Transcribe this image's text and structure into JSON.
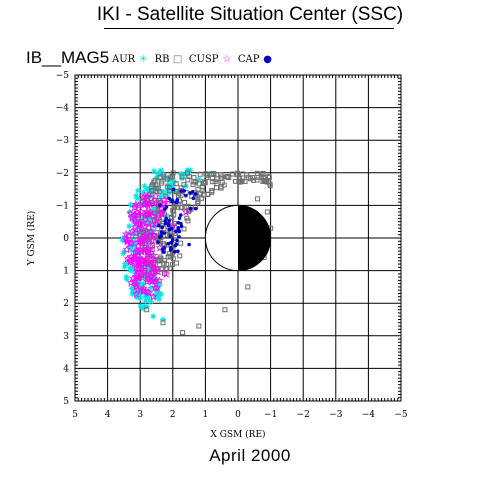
{
  "header": {
    "title": "IKI - Satellite Situation Center (SSC)",
    "satellite": "IB__MAG5",
    "date": "April    2000"
  },
  "chart_data": {
    "type": "scatter",
    "xlabel": "X GSM (RE)",
    "ylabel": "Y GSM (RE)",
    "xlim": [
      5,
      -5
    ],
    "ylim": [
      -5,
      5
    ],
    "xticks": [
      "5",
      "4",
      "3",
      "2",
      "1",
      "0",
      "−1",
      "−2",
      "−3",
      "−4",
      "−5"
    ],
    "yticks": [
      "−5",
      "−4",
      "−3",
      "−2",
      "−1",
      "0",
      "1",
      "2",
      "3",
      "4",
      "5"
    ],
    "grid": true,
    "earth": {
      "center": [
        0,
        0
      ],
      "radius": 1,
      "dayside_fill": "#ffffff",
      "nightside_fill": "#000000"
    },
    "legend_position": "top",
    "series": [
      {
        "name": "AUR",
        "color": "#00e5e5",
        "marker": "asterisk",
        "region": {
          "x": [
            0.6,
            3.6
          ],
          "y": [
            -2.1,
            2.6
          ]
        },
        "points": [
          [
            3.3,
            0.9
          ],
          [
            3.2,
            1.3
          ],
          [
            3.0,
            1.7
          ],
          [
            2.8,
            2.1
          ],
          [
            2.6,
            2.4
          ],
          [
            2.3,
            2.5
          ],
          [
            1.9,
            -1.4
          ],
          [
            1.6,
            -1.6
          ],
          [
            1.2,
            -1.8
          ],
          [
            0.9,
            -1.9
          ],
          [
            2.7,
            -0.2
          ],
          [
            2.2,
            -0.7
          ]
        ]
      },
      {
        "name": "RB",
        "color": "#6e6e6e",
        "marker": "square",
        "region": {
          "x": [
            -1.0,
            3.0
          ],
          "y": [
            -2.0,
            3.0
          ]
        },
        "points": [
          [
            -0.6,
            -1.2
          ],
          [
            -0.9,
            -0.8
          ],
          [
            -1.0,
            -0.3
          ],
          [
            -0.8,
            0.6
          ],
          [
            -0.3,
            1.5
          ],
          [
            0.4,
            2.2
          ],
          [
            1.2,
            2.7
          ],
          [
            1.7,
            2.9
          ],
          [
            2.3,
            2.6
          ],
          [
            2.8,
            2.2
          ]
        ]
      },
      {
        "name": "CUSP",
        "color": "#ff00ff",
        "marker": "star",
        "region": {
          "x": [
            1.3,
            3.5
          ],
          "y": [
            -1.3,
            1.8
          ]
        },
        "points": [
          [
            3.3,
            0.7
          ],
          [
            3.1,
            1.2
          ],
          [
            2.9,
            1.6
          ],
          [
            2.6,
            1.8
          ],
          [
            2.4,
            0.3
          ],
          [
            2.0,
            -0.4
          ],
          [
            1.6,
            -0.8
          ],
          [
            2.8,
            -0.8
          ],
          [
            2.2,
            1.1
          ],
          [
            3.0,
            0.1
          ]
        ]
      },
      {
        "name": "CAP",
        "color": "#0000cc",
        "marker": "dot",
        "region": {
          "x": [
            1.2,
            2.5
          ],
          "y": [
            -1.5,
            0.5
          ]
        },
        "points": [
          [
            1.9,
            -1.1
          ],
          [
            1.6,
            -1.3
          ],
          [
            1.3,
            -0.9
          ],
          [
            2.2,
            -0.6
          ],
          [
            1.8,
            -0.2
          ],
          [
            1.5,
            0.2
          ],
          [
            2.4,
            -1.0
          ]
        ]
      }
    ]
  }
}
